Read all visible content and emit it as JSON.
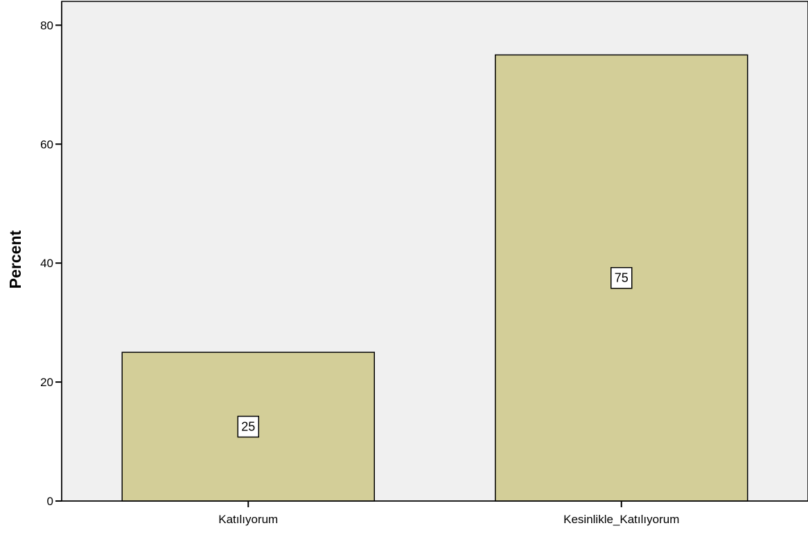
{
  "chart_data": {
    "type": "bar",
    "categories": [
      "Katılıyorum",
      "Kesinlikle_Katılıyorum"
    ],
    "values": [
      25,
      75
    ],
    "data_labels": [
      "25",
      "75"
    ],
    "ylabel": "Percent",
    "xlabel": "",
    "ylim": [
      0,
      84
    ],
    "yticks": [
      0,
      20,
      40,
      60,
      80
    ],
    "ytick_labels": [
      "0",
      "20",
      "40",
      "60",
      "80"
    ],
    "grid": false,
    "legend": "none",
    "colors": {
      "plot_background": "#f0f0f0",
      "bar_fill": "#d3ce98",
      "bar_stroke": "#000000",
      "axis": "#000000",
      "label_box_fill": "#ffffff"
    }
  }
}
